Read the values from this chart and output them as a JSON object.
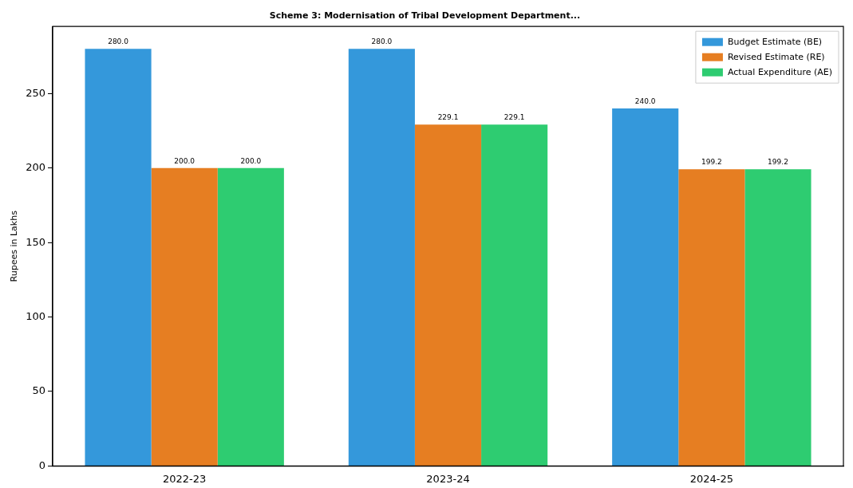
{
  "chart_data": {
    "type": "bar",
    "title": "Scheme 3: Modernisation of Tribal Development Department...",
    "ylabel": "Rupees in Lakhs",
    "categories": [
      "2022-23",
      "2023-24",
      "2024-25"
    ],
    "series": [
      {
        "name": "Budget Estimate (BE)",
        "color": "#3498db",
        "values": [
          280.0,
          280.0,
          240.0
        ],
        "value_labels": [
          "280.0",
          "280.0",
          "240.0"
        ]
      },
      {
        "name": "Revised Estimate (RE)",
        "color": "#e67e22",
        "values": [
          200.0,
          229.1,
          199.2
        ],
        "value_labels": [
          "200.0",
          "229.1",
          "199.2"
        ]
      },
      {
        "name": "Actual Expenditure (AE)",
        "color": "#2ecc71",
        "values": [
          200.0,
          229.1,
          199.2
        ],
        "value_labels": [
          "200.0",
          "229.1",
          "199.2"
        ]
      }
    ],
    "ylim": [
      0,
      295
    ],
    "yticks": [
      0,
      50,
      100,
      150,
      200,
      250
    ],
    "grid": false,
    "legend": "top right"
  }
}
